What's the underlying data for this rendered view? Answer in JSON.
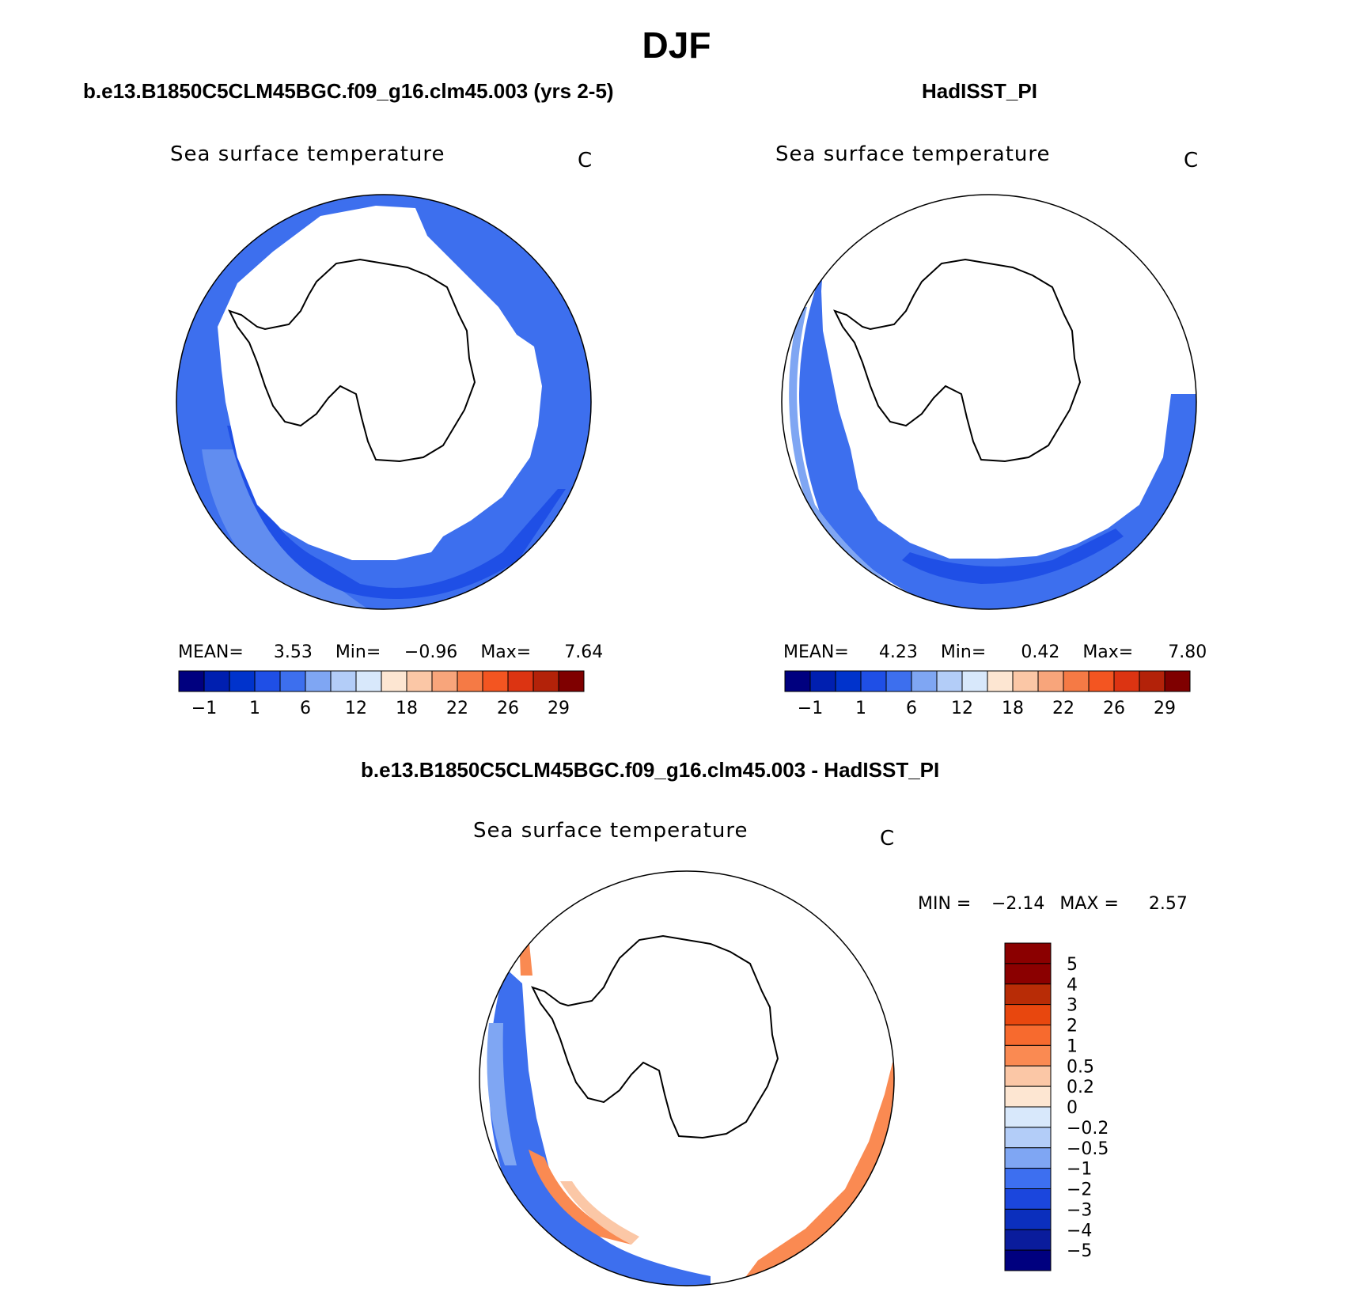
{
  "title": "DJF",
  "colors": {
    "abs_scale": [
      "#00007f",
      "#001fb0",
      "#0033cc",
      "#1f4fe6",
      "#3d6fee",
      "#7fa6f3",
      "#b3cdf8",
      "#d8e8fb",
      "#fde6d2",
      "#fbc7a6",
      "#f8a57b",
      "#f57a45",
      "#f35521",
      "#dc3412",
      "#b32209",
      "#7f0000"
    ],
    "diff_scale": [
      "#00007f",
      "#0a1c9c",
      "#0b2fbd",
      "#1b46dd",
      "#3d6ff0",
      "#7fa6f3",
      "#b3cdf8",
      "#d8e8fb",
      "#fde6d2",
      "#fbc7a6",
      "#fa8a52",
      "#f76a2e",
      "#e8470e",
      "#b82c06",
      "#8b0000"
    ],
    "land": "#ffffff",
    "coast": "#000000"
  },
  "panels": [
    {
      "title": "b.e13.B1850C5CLM45BGC.f09_g16.clm45.003 (yrs 2-5)",
      "field": "Sea surface temperature",
      "units": "C",
      "mean_label": "MEAN=",
      "mean_value": "3.53",
      "min_label": "Min=",
      "min_value": "−0.96",
      "max_label": "Max=",
      "max_value": "7.64"
    },
    {
      "title": "HadISST_PI",
      "field": "Sea surface temperature",
      "units": "C",
      "mean_label": "MEAN=",
      "mean_value": "4.23",
      "min_label": "Min=",
      "min_value": "0.42",
      "max_label": "Max=",
      "max_value": "7.80"
    }
  ],
  "diff_panel": {
    "title": "b.e13.B1850C5CLM45BGC.f09_g16.clm45.003 - HadISST_PI",
    "field": "Sea surface temperature",
    "units": "C",
    "min_label": "MIN =",
    "min_value": "−2.14",
    "max_label": "MAX =",
    "max_value": "2.57"
  },
  "chart_data": [
    {
      "type": "heatmap",
      "title": "b.e13.B1850C5CLM45BGC.f09_g16.clm45.003 (yrs 2-5)",
      "subtitle": "Sea surface temperature",
      "units": "C",
      "projection": "south polar stereographic",
      "colorbar_ticks": [
        "−1",
        "1",
        "6",
        "12",
        "18",
        "22",
        "26",
        "29"
      ],
      "stats": {
        "mean": 3.53,
        "min": -0.96,
        "max": 7.64
      }
    },
    {
      "type": "heatmap",
      "title": "HadISST_PI",
      "subtitle": "Sea surface temperature",
      "units": "C",
      "projection": "south polar stereographic",
      "colorbar_ticks": [
        "−1",
        "1",
        "6",
        "12",
        "18",
        "22",
        "26",
        "29"
      ],
      "stats": {
        "mean": 4.23,
        "min": 0.42,
        "max": 7.8
      }
    },
    {
      "type": "heatmap",
      "title": "b.e13.B1850C5CLM45BGC.f09_g16.clm45.003 - HadISST_PI",
      "subtitle": "Sea surface temperature",
      "units": "C",
      "projection": "south polar stereographic",
      "colorbar_ticks": [
        "5",
        "4",
        "3",
        "2",
        "1",
        "0.5",
        "0.2",
        "0",
        "−0.2",
        "−0.5",
        "−1",
        "−2",
        "−3",
        "−4",
        "−5"
      ],
      "stats": {
        "min": -2.14,
        "max": 2.57
      }
    }
  ]
}
